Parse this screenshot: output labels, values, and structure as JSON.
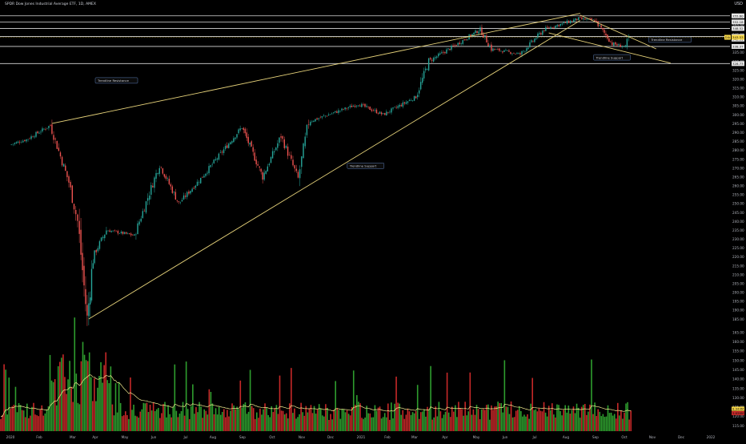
{
  "header": {
    "title": "SPDR Dow Jones Industrial Average ETF, 1D, AMEX",
    "currency": "USD"
  },
  "colors": {
    "background": "#000000",
    "up": "#26a69a",
    "down": "#ef5350",
    "volume_up": "#2e9d2e",
    "volume_down": "#c62828",
    "trendline": "#e6d27a",
    "horizontal": "#d8d8d8",
    "volume_ma": "#f2ea8e",
    "axis_text": "#b2b5be",
    "current_price": "#f5d547"
  },
  "chart_data": {
    "type": "candlestick",
    "x_axis": {
      "labels": [
        "2020",
        "Feb",
        "Mar",
        "Apr",
        "May",
        "Jun",
        "Jul",
        "Aug",
        "Sep",
        "Oct",
        "Nov",
        "Dec",
        "2021",
        "Feb",
        "Mar",
        "Apr",
        "May",
        "Jun",
        "Jul",
        "Aug",
        "Sep",
        "Oct",
        "Nov",
        "Dec",
        "2022"
      ]
    },
    "price_axis": {
      "range": [
        185,
        360
      ],
      "ticks": [
        355,
        350,
        345,
        335,
        330,
        325,
        320,
        315,
        310,
        305,
        300,
        295,
        290,
        285,
        280,
        275,
        270,
        265,
        260,
        255,
        250,
        245,
        240,
        235,
        230,
        225,
        220,
        215,
        210,
        205,
        200,
        195,
        190,
        185
      ],
      "price_badges": [
        {
          "value": 355.6,
          "label": "355.60"
        },
        {
          "value": 352.18,
          "label": "352.18"
        },
        {
          "value": 348.52,
          "label": "348.52"
        },
        {
          "value": 342.51,
          "label": "342.51"
        },
        {
          "value": 344.01,
          "label": "344.01"
        },
        {
          "value": 338.37,
          "label": "338.37"
        },
        {
          "value": 328.73,
          "label": "328.73"
        }
      ],
      "current": {
        "value": 343.53,
        "label": "343.53",
        "tag": "DIA"
      }
    },
    "horizontal_levels": [
      355.6,
      352.18,
      348.52,
      344.01,
      338.37,
      328.73
    ],
    "trendlines": [
      {
        "name": "Trendline Resistance",
        "from": {
          "date": "2020-02-12",
          "price": 295
        },
        "to": {
          "date": "2021-08-16",
          "price": 357
        }
      },
      {
        "name": "Trendline Support",
        "from": {
          "date": "2020-03-23",
          "price": 185
        },
        "to": {
          "date": "2021-08-16",
          "price": 353
        }
      },
      {
        "name": "Trendline Resistance",
        "from": {
          "date": "2021-08-16",
          "price": 356
        },
        "to": {
          "date": "2021-11-05",
          "price": 337
        }
      },
      {
        "name": "Trendline Support",
        "from": {
          "date": "2021-07-15",
          "price": 346
        },
        "to": {
          "date": "2021-11-20",
          "price": 329
        }
      }
    ],
    "annotations": [
      {
        "text": "Trendline Resistance",
        "date": "2021-10-28",
        "price": 342
      },
      {
        "text": "Trendline Support",
        "date": "2021-08-30",
        "price": 332
      },
      {
        "text": "Trendline Resistance",
        "date": "2020-04-01",
        "price": 319
      },
      {
        "text": "Trendline Support",
        "date": "2020-12-18",
        "price": 271
      }
    ],
    "price_anchors": [
      {
        "date": "2020-01-02",
        "price": 283
      },
      {
        "date": "2020-01-20",
        "price": 286
      },
      {
        "date": "2020-02-12",
        "price": 294
      },
      {
        "date": "2020-02-28",
        "price": 262
      },
      {
        "date": "2020-03-10",
        "price": 240
      },
      {
        "date": "2020-03-23",
        "price": 185
      },
      {
        "date": "2020-03-31",
        "price": 220
      },
      {
        "date": "2020-04-14",
        "price": 235
      },
      {
        "date": "2020-05-13",
        "price": 232
      },
      {
        "date": "2020-06-08",
        "price": 272
      },
      {
        "date": "2020-06-26",
        "price": 250
      },
      {
        "date": "2020-07-20",
        "price": 264
      },
      {
        "date": "2020-09-02",
        "price": 293
      },
      {
        "date": "2020-09-23",
        "price": 265
      },
      {
        "date": "2020-10-12",
        "price": 288
      },
      {
        "date": "2020-10-30",
        "price": 264
      },
      {
        "date": "2020-11-10",
        "price": 296
      },
      {
        "date": "2020-12-31",
        "price": 306
      },
      {
        "date": "2021-01-29",
        "price": 300
      },
      {
        "date": "2021-03-04",
        "price": 310
      },
      {
        "date": "2021-03-17",
        "price": 330
      },
      {
        "date": "2021-04-15",
        "price": 340
      },
      {
        "date": "2021-05-07",
        "price": 348
      },
      {
        "date": "2021-05-19",
        "price": 337
      },
      {
        "date": "2021-06-18",
        "price": 334
      },
      {
        "date": "2021-07-12",
        "price": 348
      },
      {
        "date": "2021-08-16",
        "price": 354
      },
      {
        "date": "2021-09-02",
        "price": 353
      },
      {
        "date": "2021-09-20",
        "price": 340
      },
      {
        "date": "2021-10-04",
        "price": 338
      },
      {
        "date": "2021-10-08",
        "price": 343.5
      }
    ],
    "volume": {
      "axis_ticks": [
        165,
        160,
        155,
        150,
        145,
        140,
        135,
        130,
        125,
        120,
        115
      ],
      "badges": [
        {
          "value": "8.944M",
          "color": "#f5d547"
        },
        {
          "value": "3.638M",
          "color": "#c62828"
        }
      ],
      "has_moving_average": true
    }
  }
}
